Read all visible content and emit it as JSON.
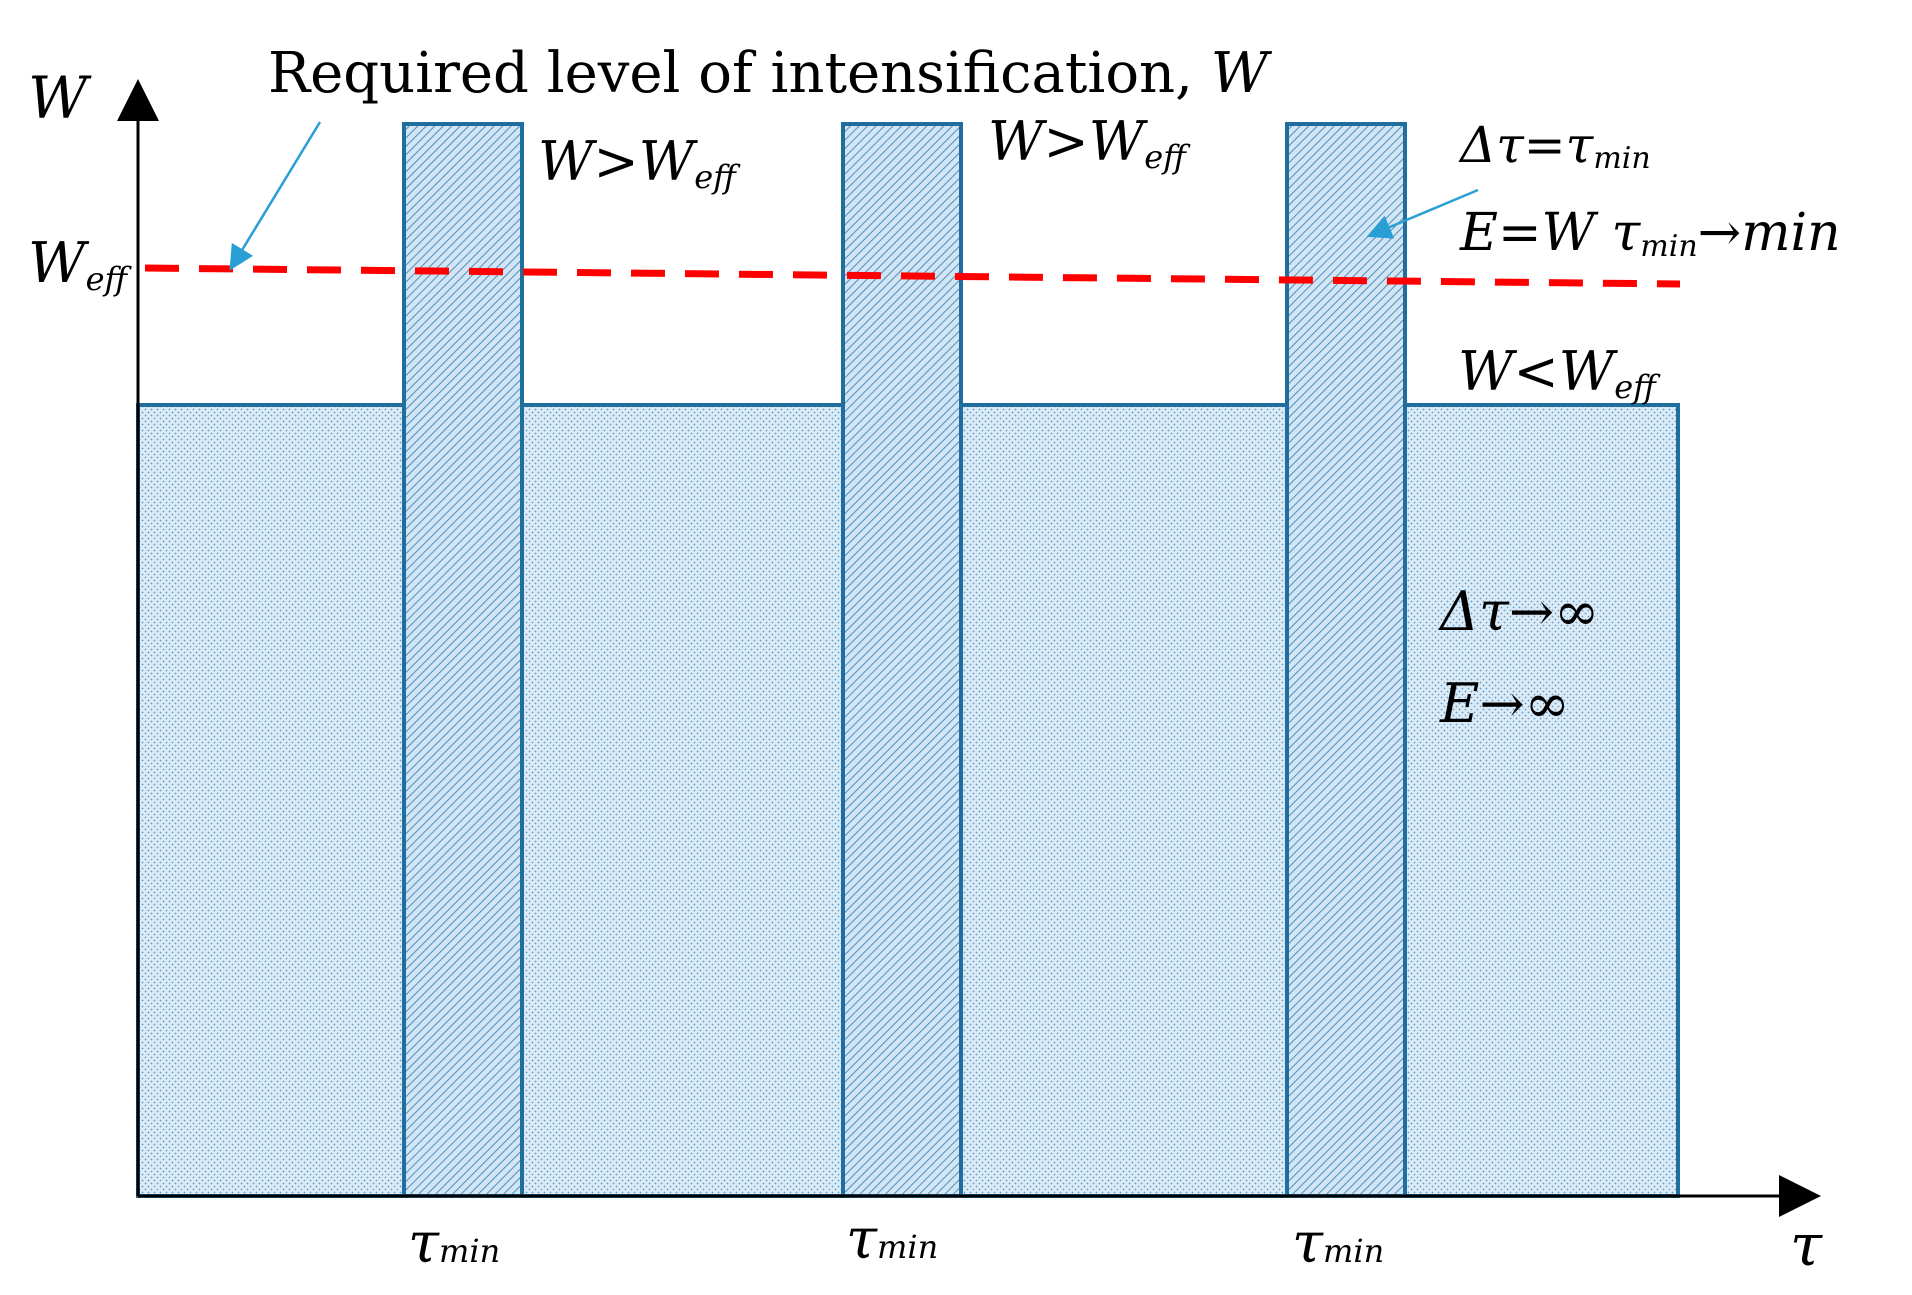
{
  "title": {
    "text": "Required level of intensification, ",
    "symbol": "W"
  },
  "axes": {
    "y_label": "W",
    "x_label": "τ",
    "w_eff": {
      "main": "W",
      "sub": "eff"
    }
  },
  "labels": {
    "w_gt_weff_1": {
      "a": "W>W",
      "sub": "eff"
    },
    "w_gt_weff_2": {
      "a": "W>W",
      "sub": "eff"
    },
    "w_lt_weff": {
      "a": "W<W",
      "sub": "eff"
    },
    "dtau_eq_tmin": {
      "a": "Δτ=τ",
      "sub": "min"
    },
    "e_eq_w_tmin": {
      "a": "E=W τ",
      "sub": "min",
      "b": "→min"
    },
    "dtau_inf": "Δτ→∞",
    "e_inf": "E→∞",
    "tau_min_ticks": [
      {
        "main": "τ",
        "sub": "min"
      },
      {
        "main": "τ",
        "sub": "min"
      },
      {
        "main": "τ",
        "sub": "min"
      }
    ]
  },
  "colors": {
    "bar_stroke": "#1f6e9e",
    "bar_fill": "#cfe3f2",
    "hatch": "#4a8fc2",
    "dashed_line": "#ff0000",
    "arrow": "#2a9fd6",
    "axis": "#000000"
  }
}
